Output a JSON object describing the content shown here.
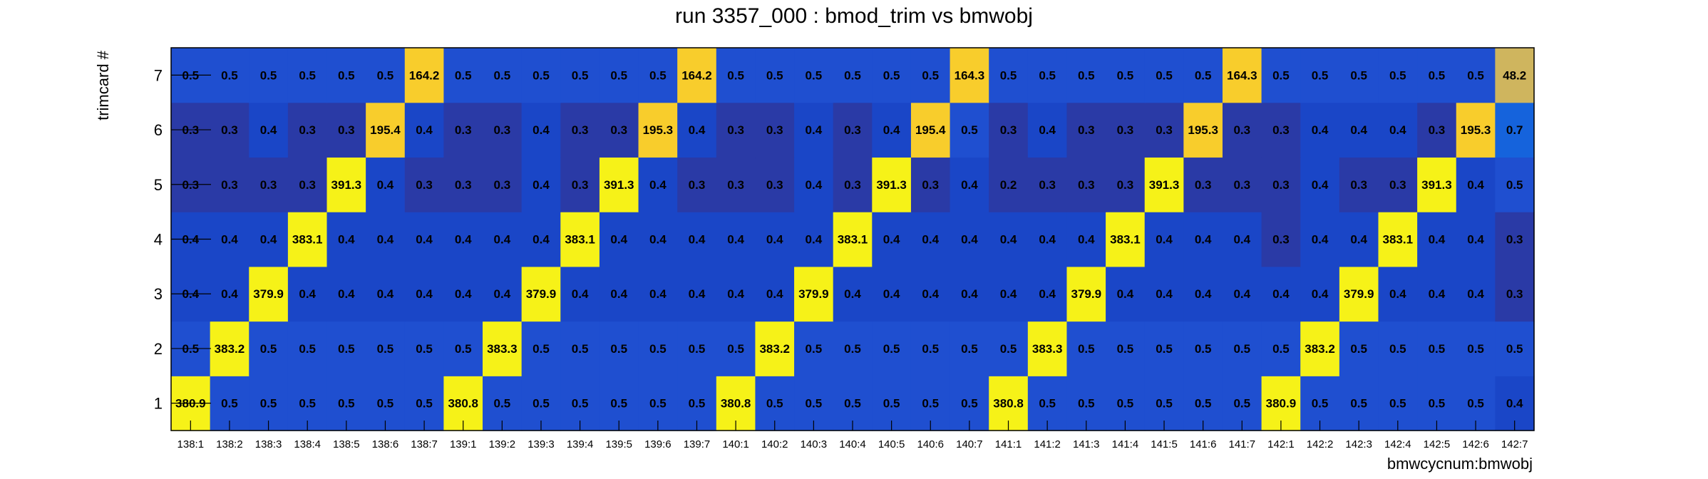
{
  "chart_data": {
    "type": "heatmap",
    "title": "run 3357_000 : bmod_trim vs bmwobj",
    "xlabel": "bmwcycnum:bmwobj",
    "ylabel": "trimcard #",
    "x_categories": [
      "138:1",
      "138:2",
      "138:3",
      "138:4",
      "138:5",
      "138:6",
      "138:7",
      "139:1",
      "139:2",
      "139:3",
      "139:4",
      "139:5",
      "139:6",
      "139:7",
      "140:1",
      "140:2",
      "140:3",
      "140:4",
      "140:5",
      "140:6",
      "140:7",
      "141:1",
      "141:2",
      "141:3",
      "141:4",
      "141:5",
      "141:6",
      "141:7",
      "142:1",
      "142:2",
      "142:3",
      "142:4",
      "142:5",
      "142:6",
      "142:7"
    ],
    "y_categories": [
      "1",
      "2",
      "3",
      "4",
      "5",
      "6",
      "7"
    ],
    "values": [
      [
        "380.9",
        "0.5",
        "0.5",
        "0.5",
        "0.5",
        "0.5",
        "0.5",
        "380.8",
        "0.5",
        "0.5",
        "0.5",
        "0.5",
        "0.5",
        "0.5",
        "380.8",
        "0.5",
        "0.5",
        "0.5",
        "0.5",
        "0.5",
        "0.5",
        "380.8",
        "0.5",
        "0.5",
        "0.5",
        "0.5",
        "0.5",
        "0.5",
        "380.9",
        "0.5",
        "0.5",
        "0.5",
        "0.5",
        "0.5",
        "0.4"
      ],
      [
        "0.5",
        "383.2",
        "0.5",
        "0.5",
        "0.5",
        "0.5",
        "0.5",
        "0.5",
        "383.3",
        "0.5",
        "0.5",
        "0.5",
        "0.5",
        "0.5",
        "0.5",
        "383.2",
        "0.5",
        "0.5",
        "0.5",
        "0.5",
        "0.5",
        "0.5",
        "383.3",
        "0.5",
        "0.5",
        "0.5",
        "0.5",
        "0.5",
        "0.5",
        "383.2",
        "0.5",
        "0.5",
        "0.5",
        "0.5",
        "0.5"
      ],
      [
        "0.4",
        "0.4",
        "379.9",
        "0.4",
        "0.4",
        "0.4",
        "0.4",
        "0.4",
        "0.4",
        "379.9",
        "0.4",
        "0.4",
        "0.4",
        "0.4",
        "0.4",
        "0.4",
        "379.9",
        "0.4",
        "0.4",
        "0.4",
        "0.4",
        "0.4",
        "0.4",
        "379.9",
        "0.4",
        "0.4",
        "0.4",
        "0.4",
        "0.4",
        "0.4",
        "379.9",
        "0.4",
        "0.4",
        "0.4",
        "0.3"
      ],
      [
        "0.4",
        "0.4",
        "0.4",
        "383.1",
        "0.4",
        "0.4",
        "0.4",
        "0.4",
        "0.4",
        "0.4",
        "383.1",
        "0.4",
        "0.4",
        "0.4",
        "0.4",
        "0.4",
        "0.4",
        "383.1",
        "0.4",
        "0.4",
        "0.4",
        "0.4",
        "0.4",
        "0.4",
        "383.1",
        "0.4",
        "0.4",
        "0.4",
        "0.3",
        "0.4",
        "0.4",
        "383.1",
        "0.4",
        "0.4",
        "0.3"
      ],
      [
        "0.3",
        "0.3",
        "0.3",
        "0.3",
        "391.3",
        "0.4",
        "0.3",
        "0.3",
        "0.3",
        "0.4",
        "0.3",
        "391.3",
        "0.4",
        "0.3",
        "0.3",
        "0.3",
        "0.4",
        "0.3",
        "391.3",
        "0.3",
        "0.4",
        "0.2",
        "0.3",
        "0.3",
        "0.3",
        "391.3",
        "0.3",
        "0.3",
        "0.3",
        "0.4",
        "0.3",
        "0.3",
        "391.3",
        "0.4",
        "0.5"
      ],
      [
        "0.3",
        "0.3",
        "0.4",
        "0.3",
        "0.3",
        "195.4",
        "0.4",
        "0.3",
        "0.3",
        "0.4",
        "0.3",
        "0.3",
        "195.3",
        "0.4",
        "0.3",
        "0.3",
        "0.4",
        "0.3",
        "0.4",
        "195.4",
        "0.5",
        "0.3",
        "0.4",
        "0.3",
        "0.3",
        "0.3",
        "195.3",
        "0.3",
        "0.3",
        "0.4",
        "0.4",
        "0.4",
        "0.3",
        "195.3",
        "0.7"
      ],
      [
        "0.5",
        "0.5",
        "0.5",
        "0.5",
        "0.5",
        "0.5",
        "164.2",
        "0.5",
        "0.5",
        "0.5",
        "0.5",
        "0.5",
        "0.5",
        "164.2",
        "0.5",
        "0.5",
        "0.5",
        "0.5",
        "0.5",
        "0.5",
        "164.3",
        "0.5",
        "0.5",
        "0.5",
        "0.5",
        "0.5",
        "0.5",
        "164.3",
        "0.5",
        "0.5",
        "0.5",
        "0.5",
        "0.5",
        "0.5",
        "48.2"
      ]
    ],
    "colors": {
      "dark_low": "#2a3aa6",
      "mid_low": "#1a46c7",
      "base": "#1f4fd0",
      "light_high": "#1563dc",
      "peak_bright": "#f6f218",
      "peak_gold": "#f8cd2c",
      "peak_muted": "#cfb55e"
    },
    "grid": false,
    "legend": "none"
  }
}
